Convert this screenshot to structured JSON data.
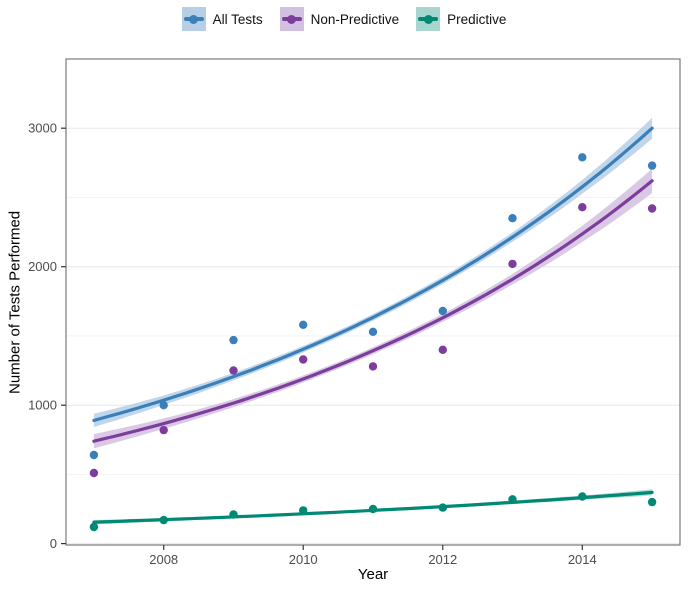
{
  "legend": {
    "items": [
      {
        "label": "All Tests"
      },
      {
        "label": "Non-Predictive"
      },
      {
        "label": "Predictive"
      }
    ]
  },
  "chart_data": {
    "type": "scatter",
    "subtype": "scatter-with-exponential-smooth-and-confidence-ribbon",
    "title": "",
    "xlabel": "Year",
    "ylabel": "Number of Tests Performed",
    "x_ticks": [
      2008,
      2010,
      2012,
      2014
    ],
    "y_ticks": [
      0,
      1000,
      2000,
      3000
    ],
    "y_minor_gridlines": [
      500,
      1500,
      2500
    ],
    "x_domain": [
      2006.6,
      2015.4
    ],
    "y_domain": [
      -10,
      3500
    ],
    "grid": "horizontal-only",
    "legend_position": "top-center",
    "x": [
      2007,
      2008,
      2009,
      2010,
      2011,
      2012,
      2013,
      2014,
      2015
    ],
    "series": [
      {
        "name": "All Tests",
        "color": "#3a7fb8",
        "ribbon_fill": "#b6cfe7",
        "points": [
          640,
          1000,
          1470,
          1580,
          1530,
          1680,
          2350,
          2790,
          2730
        ],
        "fit": [
          890,
          1036,
          1206,
          1404,
          1634,
          1902,
          2214,
          2577,
          3000
        ],
        "ci_halfwidth": [
          48,
          34,
          27,
          24,
          24,
          27,
          34,
          50,
          75
        ]
      },
      {
        "name": "Non-Predictive",
        "color": "#7c3d9c",
        "ribbon_fill": "#d2c0e0",
        "points": [
          510,
          820,
          1250,
          1330,
          1280,
          1400,
          2020,
          2430,
          2420
        ],
        "fit": [
          740,
          867,
          1015,
          1189,
          1393,
          1631,
          1910,
          2237,
          2620
        ],
        "ci_halfwidth": [
          52,
          37,
          29,
          25,
          25,
          29,
          38,
          58,
          88
        ]
      },
      {
        "name": "Predictive",
        "color": "#008975",
        "ribbon_fill": "#a8d5cd",
        "points": [
          120,
          170,
          210,
          240,
          250,
          260,
          320,
          340,
          300
        ],
        "fit": [
          155,
          173,
          193,
          215,
          240,
          267,
          298,
          332,
          370
        ],
        "ci_halfwidth": [
          16,
          12,
          10,
          9,
          9,
          10,
          12,
          16,
          22
        ]
      }
    ]
  }
}
